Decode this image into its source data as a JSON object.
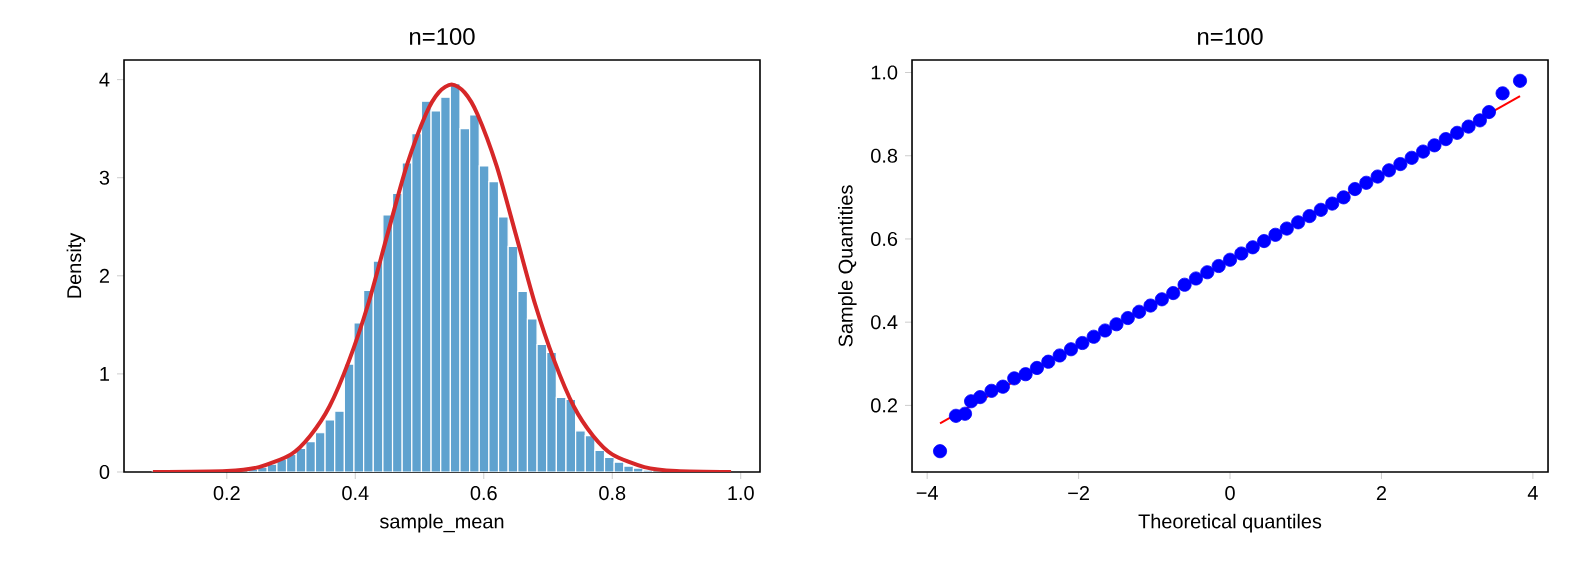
{
  "chart_data": [
    {
      "type": "histogram",
      "title": "n=100",
      "xlabel": "sample_mean",
      "ylabel": "Density",
      "xlim": [
        0.04,
        1.03
      ],
      "ylim": [
        0,
        4.2
      ],
      "xticks": [
        0.2,
        0.4,
        0.6,
        0.8,
        {
          "value": 1.0,
          "label": "1.0"
        }
      ],
      "yticks": [
        0,
        1,
        2,
        3,
        4
      ],
      "bins": [
        0.083,
        0.098,
        0.113,
        0.128,
        0.143,
        0.158,
        0.173,
        0.188,
        0.203,
        0.218,
        0.233,
        0.248,
        0.263,
        0.278,
        0.293,
        0.308,
        0.323,
        0.338,
        0.353,
        0.368,
        0.383,
        0.398,
        0.413,
        0.428,
        0.443,
        0.458,
        0.473,
        0.488,
        0.503,
        0.518,
        0.533,
        0.548,
        0.563,
        0.578,
        0.593,
        0.608,
        0.623,
        0.638,
        0.653,
        0.668,
        0.683,
        0.698,
        0.713,
        0.728,
        0.743,
        0.758,
        0.773,
        0.788,
        0.803,
        0.818,
        0.833,
        0.848,
        0.863,
        0.878,
        0.893,
        0.908,
        0.923,
        0.938,
        0.953,
        0.968,
        0.983
      ],
      "series": [
        {
          "type": "histogram",
          "color": "#5fa2cf",
          "values": [
            0,
            0,
            0,
            0,
            0,
            0,
            0,
            0,
            0,
            0,
            0.03,
            0.05,
            0.08,
            0.13,
            0.18,
            0.24,
            0.31,
            0.4,
            0.53,
            0.62,
            1.1,
            1.52,
            1.85,
            2.15,
            2.62,
            2.84,
            3.15,
            3.45,
            3.78,
            3.68,
            3.82,
            3.96,
            3.5,
            3.64,
            3.12,
            2.96,
            2.6,
            2.3,
            1.84,
            1.56,
            1.3,
            1.22,
            0.76,
            0.74,
            0.42,
            0.37,
            0.22,
            0.15,
            0.1,
            0.06,
            0.04,
            0.02,
            0,
            0,
            0,
            0,
            0,
            0,
            0,
            0
          ]
        },
        {
          "type": "line",
          "color": "#d62728",
          "x": [
            0.085,
            0.2,
            0.25,
            0.3,
            0.33,
            0.36,
            0.39,
            0.42,
            0.45,
            0.48,
            0.51,
            0.53,
            0.55,
            0.57,
            0.59,
            0.62,
            0.65,
            0.68,
            0.71,
            0.74,
            0.77,
            0.8,
            0.85,
            0.9,
            0.985
          ],
          "values": [
            0,
            0.01,
            0.05,
            0.18,
            0.37,
            0.67,
            1.13,
            1.71,
            2.42,
            3.12,
            3.65,
            3.87,
            3.95,
            3.87,
            3.65,
            3.12,
            2.42,
            1.71,
            1.13,
            0.67,
            0.37,
            0.18,
            0.05,
            0.01,
            0
          ]
        }
      ]
    },
    {
      "type": "scatter",
      "title": "n=100",
      "xlabel": "Theoretical quantiles",
      "ylabel": "Sample Quantities",
      "xlim": [
        -4.2,
        4.2
      ],
      "ylim": [
        0.04,
        1.03
      ],
      "xticks": [
        {
          "value": -4,
          "label": "−4"
        },
        {
          "value": -2,
          "label": "−2"
        },
        0,
        2,
        4
      ],
      "yticks": [
        0.2,
        0.4,
        0.6,
        0.8,
        {
          "value": 1.0,
          "label": "1.0"
        }
      ],
      "series": [
        {
          "type": "scatter",
          "marker": "circle",
          "color": "#0000ff",
          "x": [
            -3.83,
            -3.62,
            -3.5,
            -3.42,
            -3.3,
            -3.15,
            -3.0,
            -2.85,
            -2.7,
            -2.55,
            -2.4,
            -2.25,
            -2.1,
            -1.95,
            -1.8,
            -1.65,
            -1.5,
            -1.35,
            -1.2,
            -1.05,
            -0.9,
            -0.75,
            -0.6,
            -0.45,
            -0.3,
            -0.15,
            0,
            0.15,
            0.3,
            0.45,
            0.6,
            0.75,
            0.9,
            1.05,
            1.2,
            1.35,
            1.5,
            1.65,
            1.8,
            1.95,
            2.1,
            2.25,
            2.4,
            2.55,
            2.7,
            2.85,
            3.0,
            3.15,
            3.3,
            3.42,
            3.6,
            3.83
          ],
          "values": [
            0.09,
            0.175,
            0.18,
            0.21,
            0.22,
            0.235,
            0.245,
            0.265,
            0.275,
            0.29,
            0.305,
            0.32,
            0.335,
            0.35,
            0.365,
            0.38,
            0.395,
            0.41,
            0.425,
            0.44,
            0.455,
            0.47,
            0.49,
            0.505,
            0.52,
            0.535,
            0.55,
            0.565,
            0.58,
            0.595,
            0.61,
            0.625,
            0.64,
            0.655,
            0.67,
            0.685,
            0.7,
            0.72,
            0.735,
            0.75,
            0.765,
            0.78,
            0.795,
            0.81,
            0.825,
            0.84,
            0.855,
            0.87,
            0.885,
            0.905,
            0.95,
            0.98
          ]
        },
        {
          "type": "line",
          "marker": "none",
          "color": "#ff0000",
          "x": [
            -3.83,
            3.83
          ],
          "values": [
            0.157,
            0.943
          ]
        }
      ]
    }
  ]
}
